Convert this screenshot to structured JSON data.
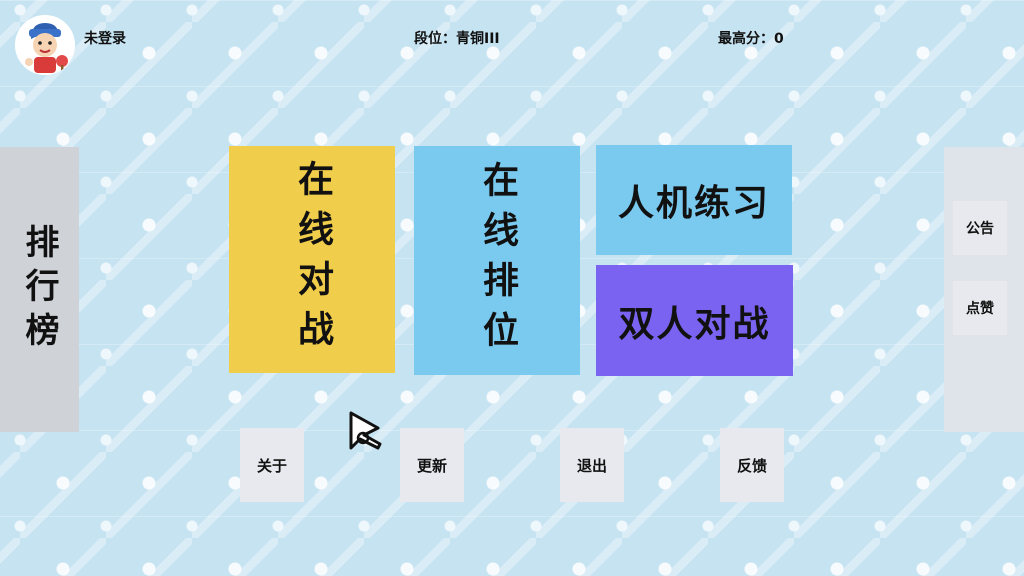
{
  "header": {
    "login_status": "未登录",
    "rank": "段位：青铜III",
    "high_score": "最高分：0"
  },
  "sidebar_left": {
    "leaderboard_label": "排行榜"
  },
  "sidebar_right": {
    "notice_label": "公告",
    "like_label": "点赞"
  },
  "modes": {
    "online_battle": "在线对战",
    "ranked": "在线排位",
    "ai_practice": "人机练习",
    "two_player": "双人对战"
  },
  "bottom_menu": {
    "about": "关于",
    "update": "更新",
    "exit": "退出",
    "feedback": "反馈"
  },
  "colors": {
    "background": "#c6e3f2",
    "online_battle": "#f0cd4a",
    "ranked": "#7ac9ef",
    "ai_practice": "#7ac9ef",
    "two_player": "#7b63f2",
    "panel_grey": "#cfd3d8",
    "button_grey": "#e8e9ee"
  },
  "icons": {
    "avatar": "cartoon-boy-ping-pong-avatar",
    "cursor": "arrow-cursor-icon"
  }
}
